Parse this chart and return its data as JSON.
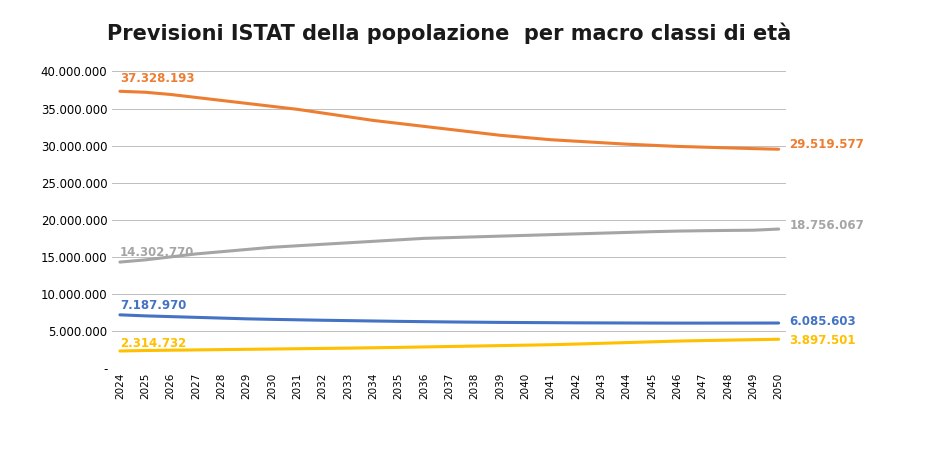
{
  "title": "Previsioni ISTAT della popolazione  per macro classi di età",
  "years": [
    2024,
    2025,
    2026,
    2027,
    2028,
    2029,
    2030,
    2031,
    2032,
    2033,
    2034,
    2035,
    2036,
    2037,
    2038,
    2039,
    2040,
    2041,
    2042,
    2043,
    2044,
    2045,
    2046,
    2047,
    2048,
    2049,
    2050
  ],
  "series": {
    "0-14": [
      7187970,
      7050000,
      6950000,
      6850000,
      6750000,
      6650000,
      6580000,
      6520000,
      6460000,
      6410000,
      6360000,
      6310000,
      6270000,
      6230000,
      6200000,
      6170000,
      6150000,
      6130000,
      6110000,
      6100000,
      6090000,
      6080000,
      6075000,
      6075000,
      6078000,
      6080000,
      6085603
    ],
    "15-64": [
      37328193,
      37200000,
      36900000,
      36500000,
      36100000,
      35700000,
      35300000,
      34900000,
      34400000,
      33900000,
      33400000,
      33000000,
      32600000,
      32200000,
      31800000,
      31400000,
      31100000,
      30800000,
      30600000,
      30400000,
      30200000,
      30050000,
      29900000,
      29800000,
      29700000,
      29600000,
      29519577
    ],
    "65+": [
      14302770,
      14600000,
      15000000,
      15400000,
      15700000,
      16000000,
      16300000,
      16500000,
      16700000,
      16900000,
      17100000,
      17300000,
      17500000,
      17600000,
      17700000,
      17800000,
      17900000,
      18000000,
      18100000,
      18200000,
      18300000,
      18400000,
      18480000,
      18530000,
      18570000,
      18600000,
      18756067
    ],
    "85+": [
      2314732,
      2380000,
      2420000,
      2460000,
      2500000,
      2540000,
      2580000,
      2620000,
      2660000,
      2700000,
      2750000,
      2800000,
      2860000,
      2920000,
      2980000,
      3040000,
      3100000,
      3160000,
      3250000,
      3350000,
      3450000,
      3550000,
      3650000,
      3720000,
      3780000,
      3840000,
      3897501
    ]
  },
  "colors": {
    "0-14": "#4472C4",
    "15-64": "#ED7D31",
    "65+": "#A5A5A5",
    "85+": "#FFC000"
  },
  "start_labels": {
    "15-64": "37.328.193",
    "65+": "14.302.770",
    "0-14": "7.187.970",
    "85+": "2.314.732"
  },
  "end_labels": {
    "15-64": "29.519.577",
    "65+": "18.756.067",
    "0-14": "6.085.603",
    "85+": "3.897.501"
  },
  "ylim": [
    0,
    42000000
  ],
  "yticks": [
    0,
    5000000,
    10000000,
    15000000,
    20000000,
    25000000,
    30000000,
    35000000,
    40000000
  ],
  "ytick_labels": [
    "-",
    "5.000.000",
    "10.000.000",
    "15.000.000",
    "20.000.000",
    "25.000.000",
    "30.000.000",
    "35.000.000",
    "40.000.000"
  ],
  "background_color": "#FFFFFF",
  "grid_color": "#BFBFBF",
  "title_fontsize": 15,
  "label_fontsize": 8.5,
  "line_width": 2.2,
  "start_label_offsets": {
    "15-64": 800000,
    "65+": 400000,
    "0-14": 400000,
    "85+": 180000
  },
  "end_label_offsets": {
    "15-64": 600000,
    "65+": 500000,
    "0-14": 200000,
    "85+": -200000
  }
}
